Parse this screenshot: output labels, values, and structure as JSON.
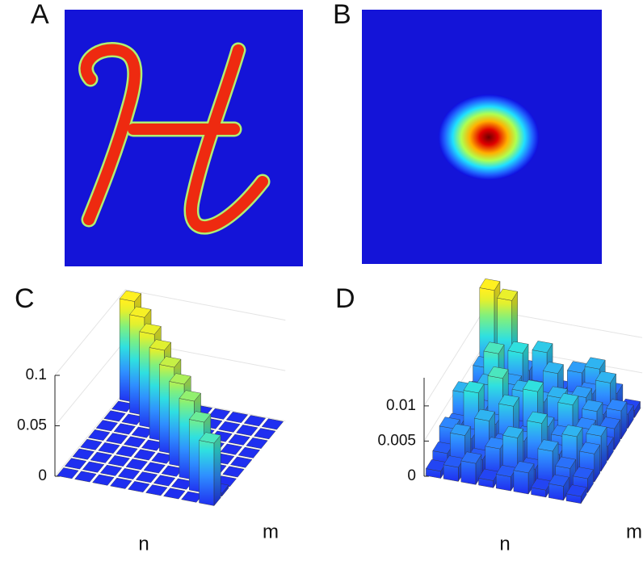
{
  "panels": [
    {
      "label": "A"
    },
    {
      "label": "B"
    }
  ],
  "chart_data": [
    {
      "type": "bar3d",
      "label": "C",
      "xlabel": "n",
      "ylabel": "m",
      "zlim": [
        0,
        0.1
      ],
      "zticks": [
        0,
        0.05,
        0.1
      ],
      "values": [
        [
          0,
          0,
          0,
          0,
          0,
          0,
          0,
          0,
          0.1
        ],
        [
          0,
          0,
          0,
          0,
          0,
          0,
          0,
          0.097,
          0
        ],
        [
          0,
          0,
          0,
          0,
          0,
          0,
          0.093,
          0,
          0
        ],
        [
          0,
          0,
          0,
          0,
          0,
          0.09,
          0,
          0,
          0
        ],
        [
          0,
          0,
          0,
          0,
          0.086,
          0,
          0,
          0,
          0
        ],
        [
          0,
          0,
          0,
          0.082,
          0,
          0,
          0,
          0,
          0
        ],
        [
          0,
          0,
          0.078,
          0,
          0,
          0,
          0,
          0,
          0
        ],
        [
          0,
          0.07,
          0.004,
          0,
          0,
          0,
          0,
          0,
          0
        ],
        [
          0.062,
          0.003,
          0,
          0,
          0,
          0,
          0,
          0,
          0
        ]
      ]
    },
    {
      "type": "bar3d",
      "label": "D",
      "xlabel": "n",
      "ylabel": "m",
      "zlim": [
        0,
        0.014
      ],
      "zticks": [
        0,
        0.005,
        0.01
      ],
      "values": [
        [
          0.001,
          0.002,
          0.004,
          0.003,
          0.006,
          0.002,
          0.003,
          0.005,
          0.0145
        ],
        [
          0.002,
          0.005,
          0.003,
          0.008,
          0.004,
          0.006,
          0.009,
          0.003,
          0.0135
        ],
        [
          0.003,
          0.002,
          0.006,
          0.004,
          0.009,
          0.003,
          0.005,
          0.008,
          0.004
        ],
        [
          0.001,
          0.004,
          0.003,
          0.007,
          0.002,
          0.006,
          0.004,
          0.003,
          0.007
        ],
        [
          0.002,
          0.006,
          0.004,
          0.003,
          0.008,
          0.005,
          0.003,
          0.006,
          0.002
        ],
        [
          0.003,
          0.002,
          0.007,
          0.005,
          0.003,
          0.006,
          0.004,
          0.002,
          0.005
        ],
        [
          0.001,
          0.005,
          0.003,
          0.004,
          0.007,
          0.002,
          0.005,
          0.004,
          0.006
        ],
        [
          0.002,
          0.003,
          0.006,
          0.002,
          0.004,
          0.005,
          0.003,
          0.006,
          0.003
        ],
        [
          0.001,
          0.002,
          0.004,
          0.005,
          0.002,
          0.003,
          0.004,
          0.002,
          0.001
        ]
      ]
    }
  ]
}
